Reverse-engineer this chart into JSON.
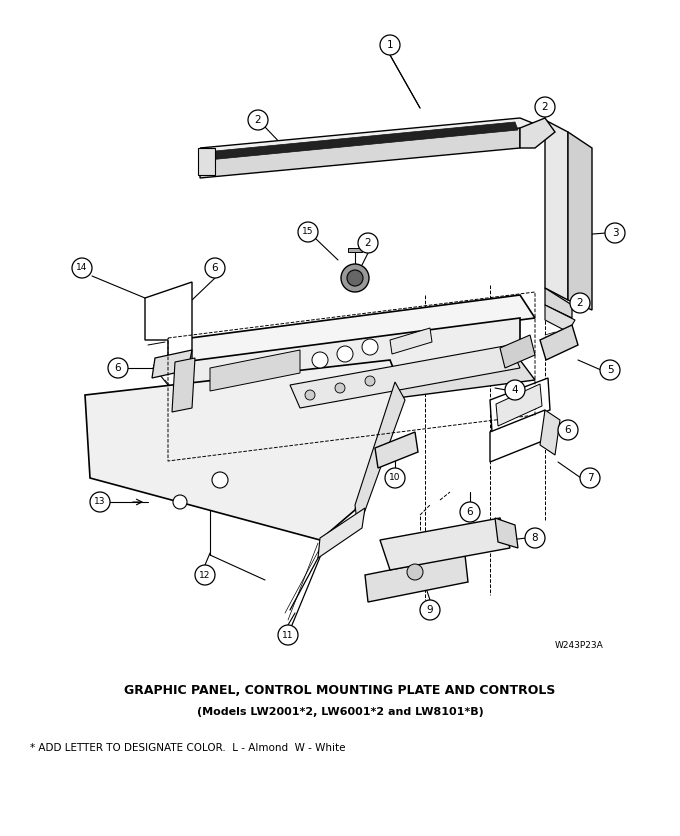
{
  "title_line1": "GRAPHIC PANEL, CONTROL MOUNTING PLATE AND CONTROLS",
  "title_line2": "(Models LW2001*2, LW6001*2 and LW8101*B)",
  "footnote": "* ADD LETTER TO DESIGNATE COLOR.  L - Almond  W - White",
  "ref_code": "W243P23A",
  "bg_color": "#ffffff"
}
